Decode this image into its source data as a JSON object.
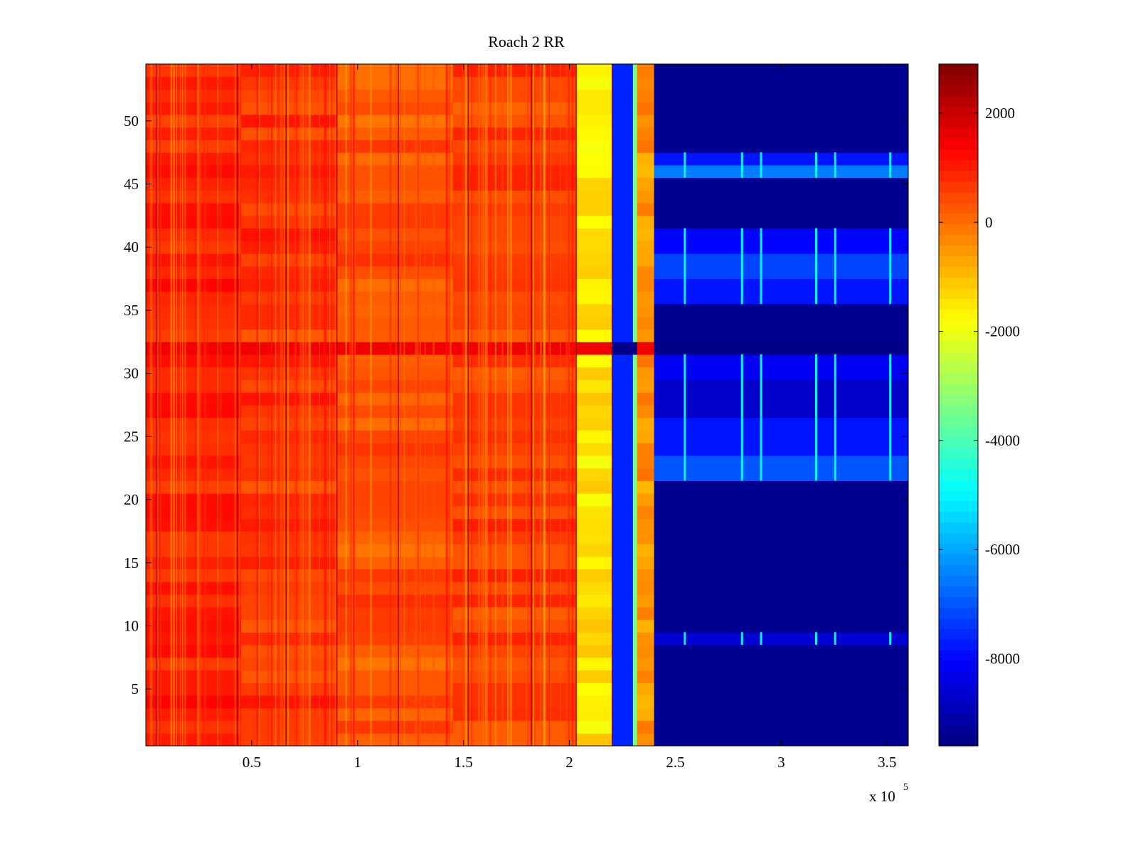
{
  "chart_data": {
    "type": "heatmap",
    "title": "Roach 2 RR",
    "xlabel": "",
    "ylabel": "",
    "x_multiplier_label": {
      "base": "x 10",
      "exponent": "5"
    },
    "xlim": [
      0,
      360000
    ],
    "ylim": [
      0.5,
      54.5
    ],
    "x_ticks": [
      50000,
      100000,
      150000,
      200000,
      250000,
      300000,
      350000
    ],
    "x_tick_labels": [
      "0.5",
      "1",
      "1.5",
      "2",
      "2.5",
      "3",
      "3.5"
    ],
    "y_ticks": [
      5,
      10,
      15,
      20,
      25,
      30,
      35,
      40,
      45,
      50
    ],
    "y_tick_labels": [
      "5",
      "10",
      "15",
      "20",
      "25",
      "30",
      "35",
      "40",
      "45",
      "50"
    ],
    "rows": 54,
    "colorbar": {
      "colormap": "jet",
      "clim": [
        -9600,
        2900
      ],
      "ticks": [
        2000,
        0,
        -2000,
        -4000,
        -6000,
        -8000
      ],
      "tick_labels": [
        "2000",
        "0",
        "-2000",
        "-4000",
        "-6000",
        "-8000"
      ]
    },
    "column_bands": [
      {
        "x_start": 0,
        "x_end": 45000,
        "value": 900
      },
      {
        "x_start": 45000,
        "x_end": 90000,
        "value": 700
      },
      {
        "x_start": 90000,
        "x_end": 145000,
        "value": 350
      },
      {
        "x_start": 145000,
        "x_end": 203000,
        "value": 550
      },
      {
        "x_start": 203000,
        "x_end": 220000,
        "value": -1500
      },
      {
        "x_start": 220000,
        "x_end": 230000,
        "value": -7600
      },
      {
        "x_start": 230000,
        "x_end": 232000,
        "value": -3500
      },
      {
        "x_start": 232000,
        "x_end": 240000,
        "value": -500
      },
      {
        "x_start": 240000,
        "x_end": 360000,
        "value": -9400
      }
    ],
    "dark_column_lines_x": [
      5000,
      43000,
      66000,
      90000,
      119000,
      152000,
      182000,
      203000,
      220000
    ],
    "active_row_bands_high_x": [
      {
        "y_start": 21.5,
        "y_end": 23.5,
        "value": -7000
      },
      {
        "y_start": 23.5,
        "y_end": 26.5,
        "value": -7800
      },
      {
        "y_start": 26.5,
        "y_end": 29.5,
        "value": -8700
      },
      {
        "y_start": 29.5,
        "y_end": 31.5,
        "value": -8200
      },
      {
        "y_start": 35.5,
        "y_end": 37.5,
        "value": -7800
      },
      {
        "y_start": 37.5,
        "y_end": 39.5,
        "value": -7200
      },
      {
        "y_start": 39.5,
        "y_end": 41.5,
        "value": -8000
      },
      {
        "y_start": 45.5,
        "y_end": 46.5,
        "value": -6500
      },
      {
        "y_start": 46.5,
        "y_end": 47.5,
        "value": -7800
      },
      {
        "y_start": 8.5,
        "y_end": 9.5,
        "value": -8600
      }
    ],
    "bright_column_lines_x": [
      254000,
      281000,
      290000,
      316000,
      325000,
      351000
    ],
    "anomalous_row": {
      "y": 32,
      "value_low_x": 1500,
      "value_high_x": -9500
    }
  }
}
